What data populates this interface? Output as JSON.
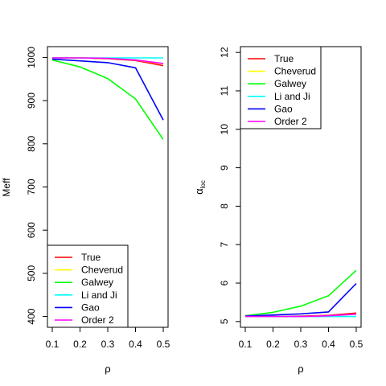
{
  "chart_data": [
    {
      "type": "line",
      "xlabel": "ρ",
      "ylabel": "Meff",
      "x": [
        0.1,
        0.2,
        0.3,
        0.4,
        0.5
      ],
      "xlim": [
        0.1,
        0.5
      ],
      "ylim": [
        375,
        1025
      ],
      "xticks": [
        "0.1",
        "0.2",
        "0.3",
        "0.4",
        "0.5"
      ],
      "yticks": [
        400,
        500,
        600,
        700,
        800,
        900,
        1000
      ],
      "grid": false,
      "legend_position": "bottom-left",
      "series": [
        {
          "name": "True",
          "color": "#ff0000",
          "values": [
            999,
            999,
            997,
            993,
            981
          ]
        },
        {
          "name": "Cheverud",
          "color": "#ffff00",
          "values": [
            999,
            999,
            998,
            994,
            985
          ]
        },
        {
          "name": "Galwey",
          "color": "#00ff00",
          "values": [
            994,
            978,
            951,
            904,
            810
          ]
        },
        {
          "name": "Li and Ji",
          "color": "#00ffff",
          "values": [
            999,
            999,
            999,
            999,
            999
          ]
        },
        {
          "name": "Gao",
          "color": "#0000ff",
          "values": [
            996,
            992,
            988,
            976,
            855
          ]
        },
        {
          "name": "Order 2",
          "color": "#ff00ff",
          "values": [
            999,
            999,
            998,
            994,
            986
          ]
        }
      ]
    },
    {
      "type": "line",
      "xlabel": "ρ",
      "ylabel_main": "α",
      "ylabel_sub": "loc",
      "x": [
        0.1,
        0.2,
        0.3,
        0.4,
        0.5
      ],
      "xlim": [
        0.1,
        0.5
      ],
      "ylim": [
        4.85,
        12.15
      ],
      "xticks": [
        "0.1",
        "0.2",
        "0.3",
        "0.4",
        "0.5"
      ],
      "yticks": [
        5,
        6,
        7,
        8,
        9,
        10,
        11,
        12
      ],
      "grid": false,
      "legend_position": "top-left",
      "series": [
        {
          "name": "True",
          "color": "#ff0000",
          "values": [
            5.13,
            5.13,
            5.14,
            5.16,
            5.22
          ]
        },
        {
          "name": "Cheverud",
          "color": "#ffff00",
          "values": [
            5.13,
            5.13,
            5.13,
            5.15,
            5.19
          ]
        },
        {
          "name": "Galwey",
          "color": "#00ff00",
          "values": [
            5.15,
            5.24,
            5.4,
            5.67,
            6.33
          ]
        },
        {
          "name": "Li and Ji",
          "color": "#00ffff",
          "values": [
            5.13,
            5.13,
            5.13,
            5.13,
            5.13
          ]
        },
        {
          "name": "Gao",
          "color": "#0000ff",
          "values": [
            5.14,
            5.17,
            5.2,
            5.25,
            5.99
          ]
        },
        {
          "name": "Order 2",
          "color": "#ff00ff",
          "values": [
            5.13,
            5.13,
            5.13,
            5.15,
            5.19
          ]
        }
      ]
    }
  ]
}
